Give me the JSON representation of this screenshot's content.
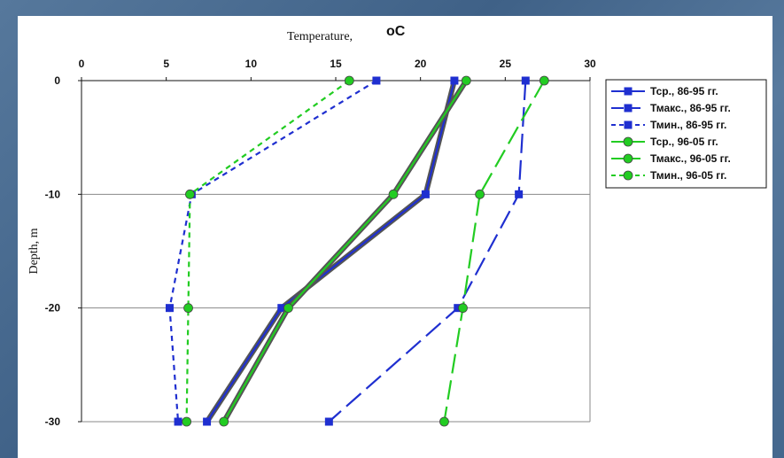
{
  "chart_data": {
    "type": "line",
    "xlabel": "Temperature,",
    "x_unit": "oC",
    "ylabel": "Depth, m",
    "xlim": [
      0,
      30
    ],
    "ylim": [
      -30,
      0
    ],
    "x_ticks": [
      0,
      5,
      10,
      15,
      20,
      25,
      30
    ],
    "y_ticks": [
      0,
      -10,
      -20,
      -30
    ],
    "grid": "horizontal",
    "legend_position": "right",
    "depth": [
      0,
      -10,
      -20,
      -30
    ],
    "series": [
      {
        "name": "Тср., 86-95 гг.",
        "color": "#1f2fd0",
        "style": "solid",
        "marker": "square",
        "values": [
          22.0,
          20.3,
          11.8,
          7.4
        ]
      },
      {
        "name": "Тмакс., 86-95 гг.",
        "color": "#1f2fd0",
        "style": "longdash",
        "marker": "square",
        "values": [
          26.2,
          25.8,
          22.2,
          14.6
        ]
      },
      {
        "name": "Тмин., 86-95 гг.",
        "color": "#1f2fd0",
        "style": "dash",
        "marker": "square",
        "values": [
          17.4,
          6.5,
          5.2,
          5.7
        ]
      },
      {
        "name": "Тср., 96-05 гг.",
        "color": "#22cc22",
        "style": "solid",
        "marker": "circle",
        "values": [
          22.7,
          18.4,
          12.2,
          8.4
        ]
      },
      {
        "name": "Тмакс., 96-05 гг.",
        "color": "#22cc22",
        "style": "longdash",
        "marker": "circle",
        "values": [
          27.3,
          23.5,
          22.5,
          21.4
        ]
      },
      {
        "name": "Тмин., 96-05 гг.",
        "color": "#22cc22",
        "style": "dash",
        "marker": "circle",
        "values": [
          15.8,
          6.4,
          6.3,
          6.2
        ]
      }
    ]
  }
}
